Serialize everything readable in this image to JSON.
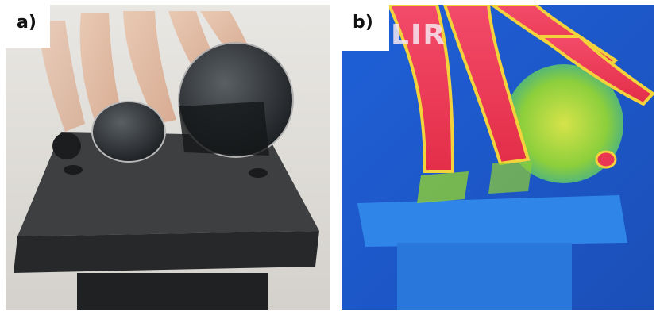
{
  "panels": [
    {
      "label": "a)"
    },
    {
      "label": "b)",
      "watermark": "LIR"
    }
  ],
  "colors": {
    "background": "#ffffff",
    "thermal_cold": "#1c5ed6",
    "thermal_warm": "#f23c5c",
    "thermal_mid": "#b6e03a"
  }
}
